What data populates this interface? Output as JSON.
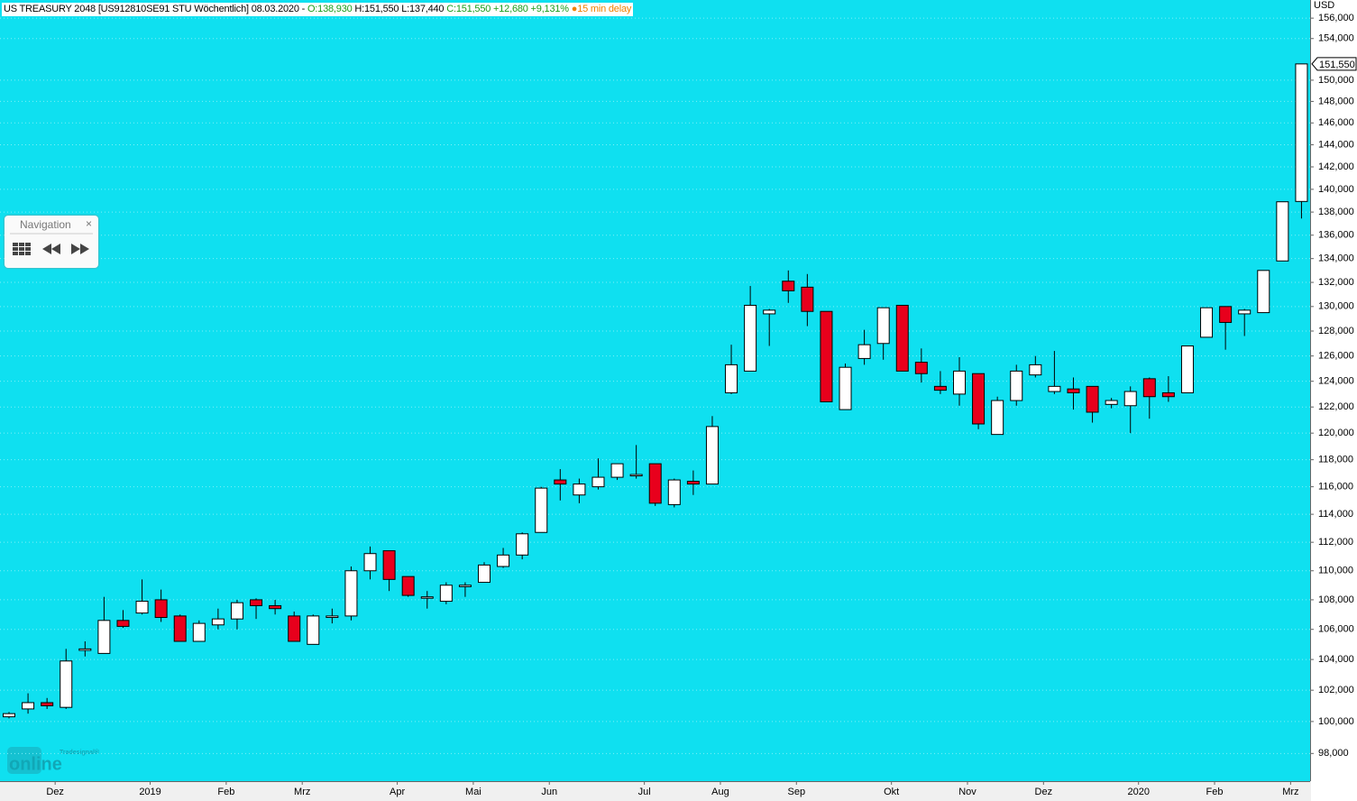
{
  "chart_data": {
    "type": "candlestick",
    "title": "US TREASURY 2048 [US912810SE91 STU Wöchentlich] 08.03.2020 -",
    "quote_open": "O:138,930",
    "quote_high_low": "H:151,550 L:137,440",
    "quote_close": "C:151,550 +12,680 +9,131%",
    "delay_note": "15 min delay",
    "y_unit": "USD",
    "last_price_label": "151,550",
    "navigation_title": "Navigation",
    "navigation_close": "×",
    "logo_small": "Tradesignal®",
    "logo_big": "online",
    "up_color": "#ffffff",
    "down_color": "#e8001c",
    "log_scale": true,
    "grid": true,
    "categories": [
      null,
      null,
      "Dez",
      null,
      null,
      null,
      null,
      "2019",
      null,
      null,
      null,
      "Feb",
      null,
      null,
      null,
      "Mrz",
      null,
      null,
      null,
      null,
      "Apr",
      null,
      null,
      null,
      "Mai",
      null,
      null,
      null,
      "Jun",
      null,
      null,
      null,
      null,
      "Jul",
      null,
      null,
      null,
      "Aug",
      null,
      null,
      null,
      "Sep",
      null,
      null,
      null,
      null,
      "Okt",
      null,
      null,
      null,
      "Nov",
      null,
      null,
      null,
      "Dez",
      null,
      null,
      null,
      null,
      "2020",
      null,
      null,
      null,
      "Feb",
      null,
      null,
      null,
      "Mrz",
      null
    ],
    "open": [
      100300,
      100800,
      101200,
      100900,
      104600,
      104400,
      106600,
      107100,
      108000,
      106900,
      105200,
      106300,
      106700,
      108000,
      107600,
      106900,
      105000,
      106800,
      106900,
      110000,
      111400,
      109600,
      108200,
      107900,
      108900,
      109200,
      110300,
      111100,
      112700,
      116500,
      115400,
      116000,
      116700,
      116800,
      117700,
      114700,
      116400,
      116200,
      123100,
      124800,
      129400,
      132100,
      131600,
      129600,
      121800,
      125800,
      127000,
      130100,
      125500,
      123600,
      123000,
      124600,
      119900,
      122500,
      124500,
      123200,
      123400,
      123600,
      122200,
      122100,
      124200,
      123100,
      123100,
      127500,
      130000,
      129400,
      129500,
      133800,
      138930
    ],
    "high": [
      100600,
      101800,
      101500,
      104700,
      105200,
      108200,
      107300,
      109400,
      108700,
      107000,
      106600,
      107400,
      108000,
      108100,
      108000,
      107200,
      107000,
      107400,
      110300,
      111700,
      111400,
      109600,
      108600,
      109200,
      109200,
      110600,
      111600,
      112700,
      116000,
      117300,
      116600,
      118100,
      117700,
      119100,
      117700,
      116600,
      117200,
      121300,
      126900,
      131700,
      129800,
      133000,
      132700,
      129600,
      125400,
      128100,
      129900,
      130100,
      126600,
      124800,
      125900,
      124600,
      122800,
      125300,
      126000,
      126400,
      124300,
      123600,
      122700,
      123600,
      124300,
      124400,
      126800,
      129900,
      130000,
      129800,
      133000,
      138900,
      151550
    ],
    "low": [
      100200,
      100500,
      100800,
      100800,
      104200,
      104400,
      106100,
      107000,
      106500,
      105200,
      105200,
      106000,
      106000,
      106700,
      107000,
      105200,
      105000,
      106400,
      106600,
      109400,
      108600,
      108200,
      107400,
      107700,
      108200,
      109200,
      110200,
      110800,
      112700,
      115000,
      114800,
      115800,
      116500,
      116600,
      114600,
      114500,
      115400,
      116200,
      123000,
      124800,
      126800,
      130300,
      128400,
      122400,
      121800,
      125300,
      125700,
      124800,
      123900,
      123000,
      122100,
      120300,
      119900,
      122100,
      124300,
      123000,
      121800,
      120800,
      121900,
      120000,
      121100,
      122400,
      123100,
      127500,
      126500,
      127600,
      129500,
      133800,
      137440
    ],
    "close": [
      100500,
      101200,
      101000,
      103900,
      104700,
      106600,
      106200,
      107900,
      106800,
      105200,
      106400,
      106700,
      107800,
      107600,
      107400,
      105200,
      106900,
      106900,
      110000,
      111200,
      109400,
      108300,
      108200,
      109000,
      109000,
      110400,
      111100,
      112600,
      115900,
      116200,
      116200,
      116700,
      117700,
      116900,
      114800,
      116500,
      116200,
      120500,
      125300,
      130100,
      129700,
      131300,
      129600,
      122400,
      125100,
      126900,
      129900,
      124800,
      124600,
      123300,
      124800,
      120700,
      122500,
      124800,
      125300,
      123600,
      123100,
      121600,
      122500,
      123200,
      122800,
      122800,
      126800,
      129900,
      128700,
      129700,
      133000,
      138900,
      151550
    ],
    "ylim": [
      96300,
      157800
    ],
    "yticks": [
      {
        "value": 98000,
        "label": "98,000"
      },
      {
        "value": 100000,
        "label": "100,000"
      },
      {
        "value": 102000,
        "label": "102,000"
      },
      {
        "value": 104000,
        "label": "104,000"
      },
      {
        "value": 106000,
        "label": "106,000"
      },
      {
        "value": 108000,
        "label": "108,000"
      },
      {
        "value": 110000,
        "label": "110,000"
      },
      {
        "value": 112000,
        "label": "112,000"
      },
      {
        "value": 114000,
        "label": "114,000"
      },
      {
        "value": 116000,
        "label": "116,000"
      },
      {
        "value": 118000,
        "label": "118,000"
      },
      {
        "value": 120000,
        "label": "120,000"
      },
      {
        "value": 122000,
        "label": "122,000"
      },
      {
        "value": 124000,
        "label": "124,000"
      },
      {
        "value": 126000,
        "label": "126,000"
      },
      {
        "value": 128000,
        "label": "128,000"
      },
      {
        "value": 130000,
        "label": "130,000"
      },
      {
        "value": 132000,
        "label": "132,000"
      },
      {
        "value": 134000,
        "label": "134,000"
      },
      {
        "value": 136000,
        "label": "136,000"
      },
      {
        "value": 138000,
        "label": "138,000"
      },
      {
        "value": 140000,
        "label": "140,000"
      },
      {
        "value": 142000,
        "label": "142,000"
      },
      {
        "value": 144000,
        "label": "144,000"
      },
      {
        "value": 146000,
        "label": "146,000"
      },
      {
        "value": 148000,
        "label": "148,000"
      },
      {
        "value": 150000,
        "label": "150,000"
      },
      {
        "value": 154000,
        "label": "154,000"
      },
      {
        "value": 156000,
        "label": "156,000"
      }
    ]
  }
}
